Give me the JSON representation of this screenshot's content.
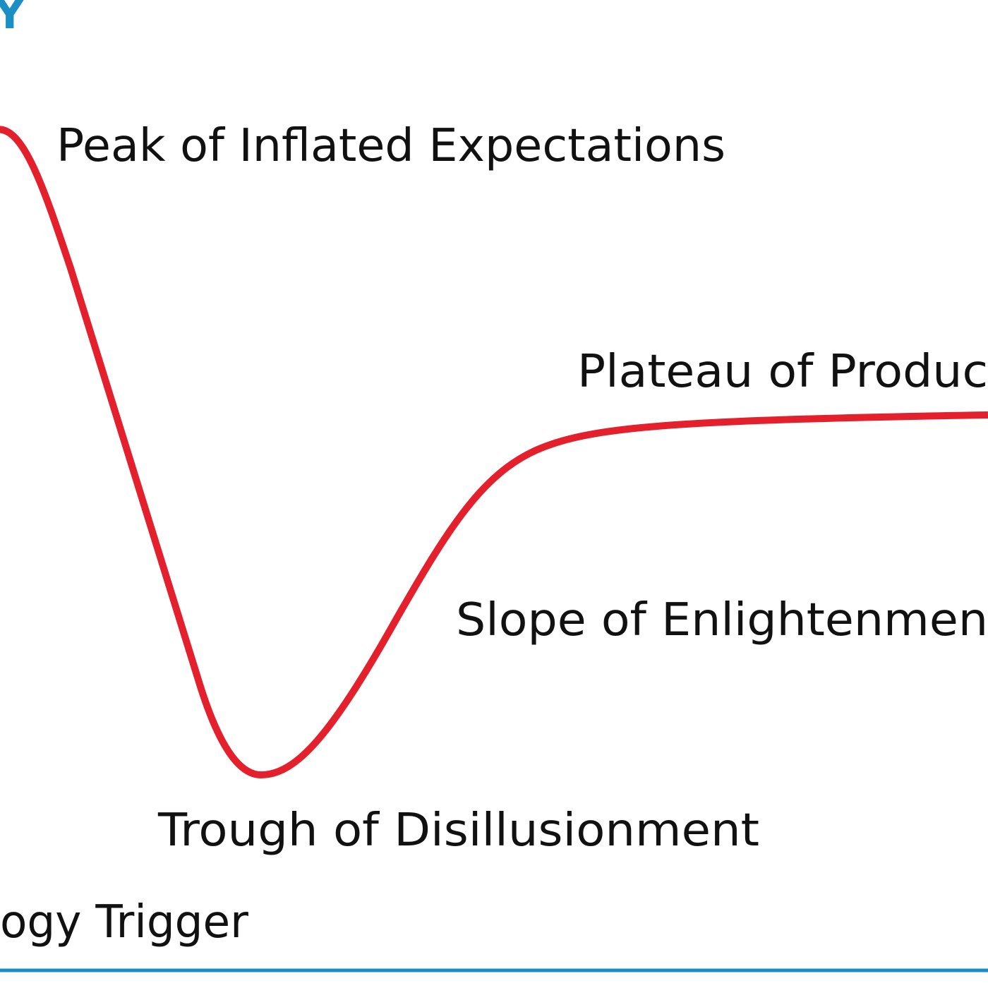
{
  "header": {
    "title_fragment": "Y"
  },
  "labels": {
    "peak": "Peak of Inflated Expectations",
    "plateau": "Plateau of Produc",
    "slope": "Slope of Enlightenmen",
    "trough": "Trough of Disillusionment",
    "trigger": "ogy Trigger"
  }
}
